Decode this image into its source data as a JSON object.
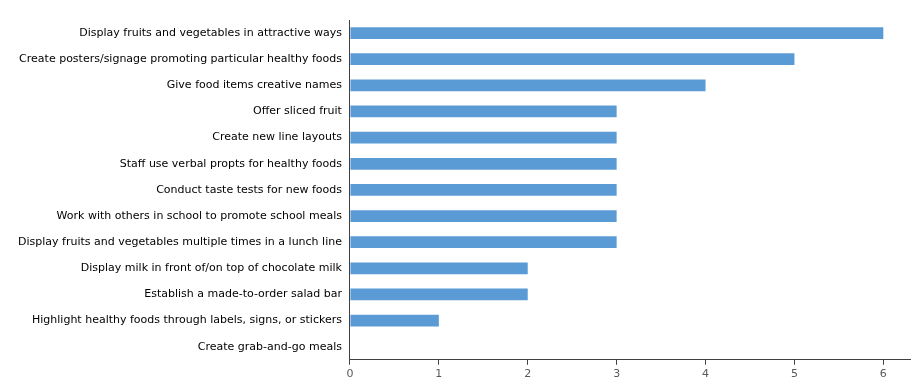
{
  "chart_data": {
    "type": "bar",
    "orientation": "horizontal",
    "categories": [
      "Display fruits and vegetables in attractive ways",
      "Create posters/signage promoting particular healthy foods",
      "Give food items creative names",
      "Offer sliced fruit",
      "Create new line layouts",
      "Staff use verbal propts for healthy foods",
      "Conduct taste tests for new foods",
      "Work with others in school to promote school meals",
      "Display fruits and vegetables multiple times in a lunch line",
      "Display milk in front of/on top of chocolate milk",
      "Establish a made-to-order salad bar",
      "Highlight healthy foods through labels, signs, or stickers",
      "Create grab-and-go meals"
    ],
    "values": [
      6,
      5,
      4,
      3,
      3,
      3,
      3,
      3,
      3,
      2,
      2,
      1,
      0
    ],
    "color": "#5b9bd5",
    "xlim": [
      0,
      6.3
    ],
    "xticks": [
      0,
      1,
      2,
      3,
      4,
      5,
      6
    ],
    "grid": false
  }
}
